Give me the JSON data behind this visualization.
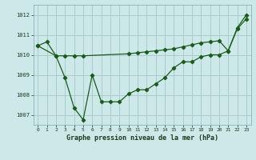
{
  "title": "Graphe pression niveau de la mer (hPa)",
  "bg_color": "#cce8e8",
  "grid_color": "#aacccc",
  "line_color": "#1a5c1a",
  "xlim": [
    -0.5,
    23.5
  ],
  "ylim": [
    1006.5,
    1012.5
  ],
  "yticks": [
    1007,
    1008,
    1009,
    1010,
    1011,
    1012
  ],
  "xticks": [
    0,
    1,
    2,
    3,
    4,
    5,
    6,
    7,
    8,
    9,
    10,
    11,
    12,
    13,
    14,
    15,
    16,
    17,
    18,
    19,
    20,
    21,
    22,
    23
  ],
  "curve1_x": [
    0,
    1,
    2,
    3,
    4,
    5,
    6,
    7,
    8,
    9,
    10,
    11,
    12,
    13,
    14,
    15,
    16,
    17,
    18,
    19,
    20,
    21,
    22,
    23
  ],
  "curve1_y": [
    1010.45,
    1010.65,
    1009.95,
    1008.85,
    1007.35,
    1006.75,
    1009.0,
    1007.65,
    1007.65,
    1007.65,
    1008.05,
    1008.25,
    1008.25,
    1008.55,
    1008.85,
    1009.35,
    1009.65,
    1009.65,
    1009.9,
    1010.0,
    1010.0,
    1010.2,
    1011.3,
    1011.8
  ],
  "curve2_x": [
    0,
    2,
    3,
    4,
    5,
    10,
    11,
    12,
    13,
    14,
    15,
    16,
    17,
    18,
    19,
    20,
    21,
    22,
    23
  ],
  "curve2_y": [
    1010.45,
    1009.95,
    1009.95,
    1009.95,
    1009.95,
    1010.05,
    1010.1,
    1010.15,
    1010.2,
    1010.25,
    1010.3,
    1010.4,
    1010.5,
    1010.6,
    1010.65,
    1010.7,
    1010.2,
    1011.35,
    1012.0
  ]
}
